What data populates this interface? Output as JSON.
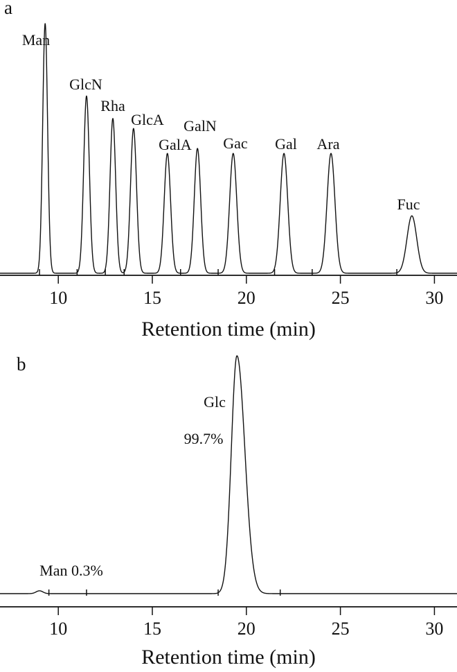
{
  "chart_data": [
    {
      "type": "line",
      "panel": "a",
      "xlabel": "Retention time (min)",
      "ylabel": "",
      "xlim": [
        6.9,
        31.2
      ],
      "xticks": [
        10,
        15,
        20,
        25,
        30
      ],
      "grid": false,
      "peaks": [
        {
          "label": "Man",
          "rt": 9.3,
          "height": 1.0,
          "width": 0.13
        },
        {
          "label": "GlcN",
          "rt": 11.5,
          "height": 0.71,
          "width": 0.15
        },
        {
          "label": "Rha",
          "rt": 12.9,
          "height": 0.62,
          "width": 0.15
        },
        {
          "label": "GlcA",
          "rt": 14.0,
          "height": 0.58,
          "width": 0.16
        },
        {
          "label": "GalA",
          "rt": 15.8,
          "height": 0.48,
          "width": 0.17
        },
        {
          "label": "GalN",
          "rt": 17.4,
          "height": 0.5,
          "width": 0.17
        },
        {
          "label": "Gac",
          "rt": 19.3,
          "height": 0.48,
          "width": 0.19
        },
        {
          "label": "Gal",
          "rt": 22.0,
          "height": 0.48,
          "width": 0.2
        },
        {
          "label": "Ara",
          "rt": 24.5,
          "height": 0.48,
          "width": 0.21
        },
        {
          "label": "Fuc",
          "rt": 28.8,
          "height": 0.23,
          "width": 0.26
        }
      ]
    },
    {
      "type": "line",
      "panel": "b",
      "xlabel": "Retention time (min)",
      "ylabel": "",
      "xlim": [
        6.9,
        31.2
      ],
      "xticks": [
        10,
        15,
        20,
        25,
        30
      ],
      "grid": false,
      "peaks": [
        {
          "label": "Man 0.3%",
          "rt": 9.0,
          "height": 0.012,
          "width": 0.18
        },
        {
          "label": "Glc",
          "rt": 19.5,
          "height": 1.0,
          "width": 0.3,
          "tail": 0.42,
          "percent": "99.7%"
        }
      ]
    }
  ]
}
